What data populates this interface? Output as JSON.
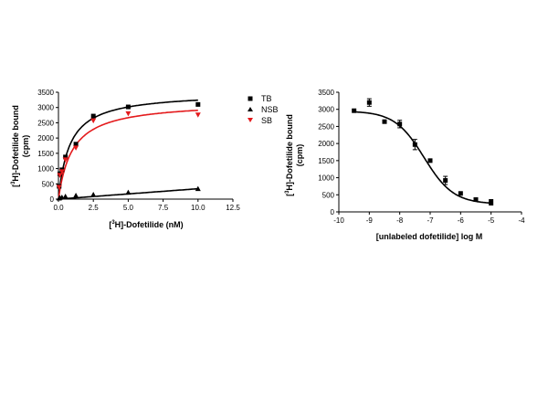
{
  "chart_data": [
    {
      "type": "scatter",
      "xlabel_sup": "3",
      "xlabel_pre": "[",
      "xlabel_post": "H]-Dofetilide (nM)",
      "ylabel_pre": "[",
      "ylabel_sup": "3",
      "ylabel_post": "H]-Dofetilide bound",
      "ylabel_unit": "(cpm)",
      "xlim": [
        0,
        12.5
      ],
      "ylim": [
        0,
        3500
      ],
      "xticks": [
        "0.0",
        "2.5",
        "5.0",
        "7.5",
        "10.0",
        "12.5"
      ],
      "yticks": [
        "0",
        "500",
        "1000",
        "1500",
        "2000",
        "2500",
        "3000",
        "3500"
      ],
      "grid": false,
      "legend_position": "right",
      "series": [
        {
          "name": "TB",
          "marker": "square",
          "color": "#000000",
          "points": [
            [
              0.05,
              420
            ],
            [
              0.1,
              830
            ],
            [
              0.25,
              960
            ],
            [
              0.5,
              1380
            ],
            [
              1.25,
              1800
            ],
            [
              2.5,
              2720
            ],
            [
              5.0,
              3020
            ],
            [
              10.0,
              3100
            ]
          ],
          "fit": {
            "bmax": 3500,
            "kd": 0.8
          }
        },
        {
          "name": "NSB",
          "marker": "triangle-up",
          "color": "#000000",
          "points": [
            [
              0.05,
              30
            ],
            [
              0.1,
              50
            ],
            [
              0.25,
              60
            ],
            [
              0.5,
              90
            ],
            [
              1.25,
              120
            ],
            [
              2.5,
              150
            ],
            [
              5.0,
              220
            ],
            [
              10.0,
              340
            ]
          ],
          "fit": {
            "slope": 34
          }
        },
        {
          "name": "SB",
          "marker": "triangle-down",
          "color": "#e41a1c",
          "points": [
            [
              0.05,
              390
            ],
            [
              0.1,
              780
            ],
            [
              0.25,
              900
            ],
            [
              0.5,
              1290
            ],
            [
              1.25,
              1680
            ],
            [
              2.5,
              2570
            ],
            [
              5.0,
              2800
            ],
            [
              10.0,
              2760
            ]
          ],
          "fit": {
            "bmax": 3200,
            "kd": 1.0
          }
        }
      ]
    },
    {
      "type": "scatter",
      "xlabel": "[unlabeled dofetilide] log M",
      "ylabel_pre": "[",
      "ylabel_sup": "3",
      "ylabel_post": "H]-Dofetilide bound",
      "ylabel_unit": "(cpm)",
      "xlim": [
        -10,
        -4
      ],
      "ylim": [
        0,
        3500
      ],
      "xticks": [
        "-10",
        "-9",
        "-8",
        "-7",
        "-6",
        "-5",
        "-4"
      ],
      "yticks": [
        "0",
        "500",
        "1000",
        "1500",
        "2000",
        "2500",
        "3000",
        "3500"
      ],
      "grid": false,
      "series": [
        {
          "name": "",
          "marker": "square",
          "color": "#000000",
          "points": [
            [
              -9.5,
              2960
            ],
            [
              -9.0,
              3200
            ],
            [
              -8.5,
              2640
            ],
            [
              -8.0,
              2570
            ],
            [
              -7.5,
              1970
            ],
            [
              -7.0,
              1500
            ],
            [
              -6.5,
              920
            ],
            [
              -6.0,
              540
            ],
            [
              -5.5,
              360
            ],
            [
              -5.0,
              280
            ]
          ],
          "errors": [
            0,
            110,
            0,
            110,
            150,
            0,
            120,
            0,
            0,
            80
          ],
          "fit": {
            "top": 2950,
            "bottom": 230,
            "log_ic50": -7.2,
            "hill": 0.9
          }
        }
      ]
    }
  ]
}
